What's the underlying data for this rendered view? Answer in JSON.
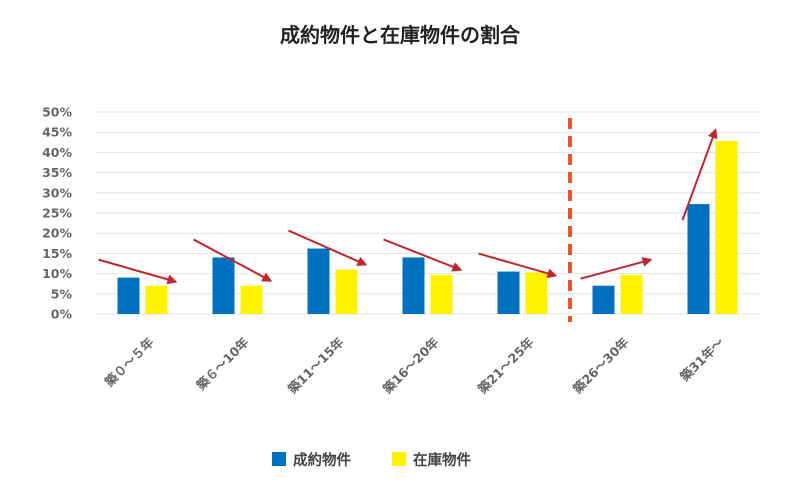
{
  "chart_data": {
    "type": "bar",
    "title": "成約物件と在庫物件の割合",
    "categories": [
      "築０～５年",
      "築６～10年",
      "築11～15年",
      "築16～20年",
      "築21～25年",
      "築26～30年",
      "築31年～"
    ],
    "series": [
      {
        "name": "成約物件",
        "color": "#0070c0",
        "values": [
          9.0,
          14.0,
          16.2,
          14.0,
          10.5,
          7.0,
          27.2
        ]
      },
      {
        "name": "在庫物件",
        "color": "#fff200",
        "values": [
          7.0,
          7.0,
          11.0,
          9.7,
          10.3,
          9.7,
          42.8
        ]
      }
    ],
    "yticks": [
      "0%",
      "5%",
      "10%",
      "15%",
      "20%",
      "25%",
      "30%",
      "35%",
      "40%",
      "45%",
      "50%"
    ],
    "ylim": [
      0,
      50
    ],
    "ytick_step": 5,
    "grid": true,
    "legend_position": "bottom",
    "annotations": {
      "arrow_color": "#c0262d",
      "trend_arrows": [
        "down",
        "down",
        "down",
        "down",
        "down",
        "up",
        "up"
      ],
      "divider": {
        "between": [
          "築21～25年",
          "築26～30年"
        ],
        "style": "dashed",
        "color": "#e8562a"
      }
    },
    "gridline_color": "#e3e3e3"
  }
}
